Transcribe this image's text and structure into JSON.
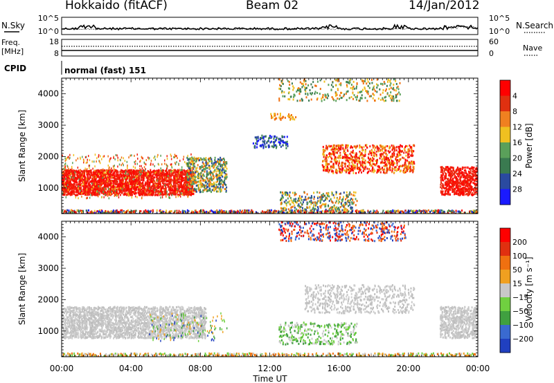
{
  "header": {
    "station": "Hokkaido (fitACF)",
    "beam": "Beam 02",
    "date": "14/Jan/2012"
  },
  "top_panels": {
    "nsky_label": "N.Sky",
    "nsearch_label": "N.Search",
    "nsky_ticks": [
      "10^5",
      "10^0"
    ],
    "nsearch_ticks": [
      "10^5",
      "10^0"
    ],
    "freq_label_1": "Freq.",
    "freq_label_2": "[MHz]",
    "freq_ticks": [
      "18",
      "8"
    ],
    "nave_label": "Nave",
    "nave_ticks": [
      "60",
      "0"
    ],
    "cpid_label": "CPID",
    "cpid_value": "normal (fast) 151"
  },
  "chart_data": [
    {
      "type": "heatmap",
      "title": "",
      "ylabel": "Slant Range [km]",
      "xlabel": "",
      "x_ticks": [
        "00:00",
        "04:00",
        "08:00",
        "12:00",
        "16:00",
        "20:00",
        "00:00"
      ],
      "xlim_hours": [
        0,
        24
      ],
      "ylim": [
        180,
        4500
      ],
      "y_ticks": [
        1000,
        2000,
        3000,
        4000
      ],
      "colorbar": {
        "label": "Power [dB]",
        "ticks": [
          "4",
          "8",
          "12",
          "16",
          "20",
          "24",
          "28"
        ],
        "colors": [
          "#1a1aff",
          "#2a4aa0",
          "#3a7a50",
          "#5aa05a",
          "#f0c020",
          "#f08020",
          "#e03010",
          "#ff0000"
        ]
      }
    },
    {
      "type": "heatmap",
      "title": "",
      "ylabel": "Slant Range [km]",
      "xlabel": "Time UT",
      "x_ticks": [
        "00:00",
        "04:00",
        "08:00",
        "12:00",
        "16:00",
        "20:00",
        "00:00"
      ],
      "xlim_hours": [
        0,
        24
      ],
      "ylim": [
        180,
        4500
      ],
      "y_ticks": [
        1000,
        2000,
        3000,
        4000
      ],
      "colorbar": {
        "label": "Velocity [m s⁻¹]",
        "ticks": [
          "200",
          "100",
          "50",
          "15",
          "−15",
          "−50",
          "−100",
          "−200"
        ],
        "colors": [
          "#2040c0",
          "#3a6ad0",
          "#40a040",
          "#70d040",
          "#c8c8c8",
          "#f0a020",
          "#f07010",
          "#e03010",
          "#ff0000"
        ]
      }
    }
  ]
}
